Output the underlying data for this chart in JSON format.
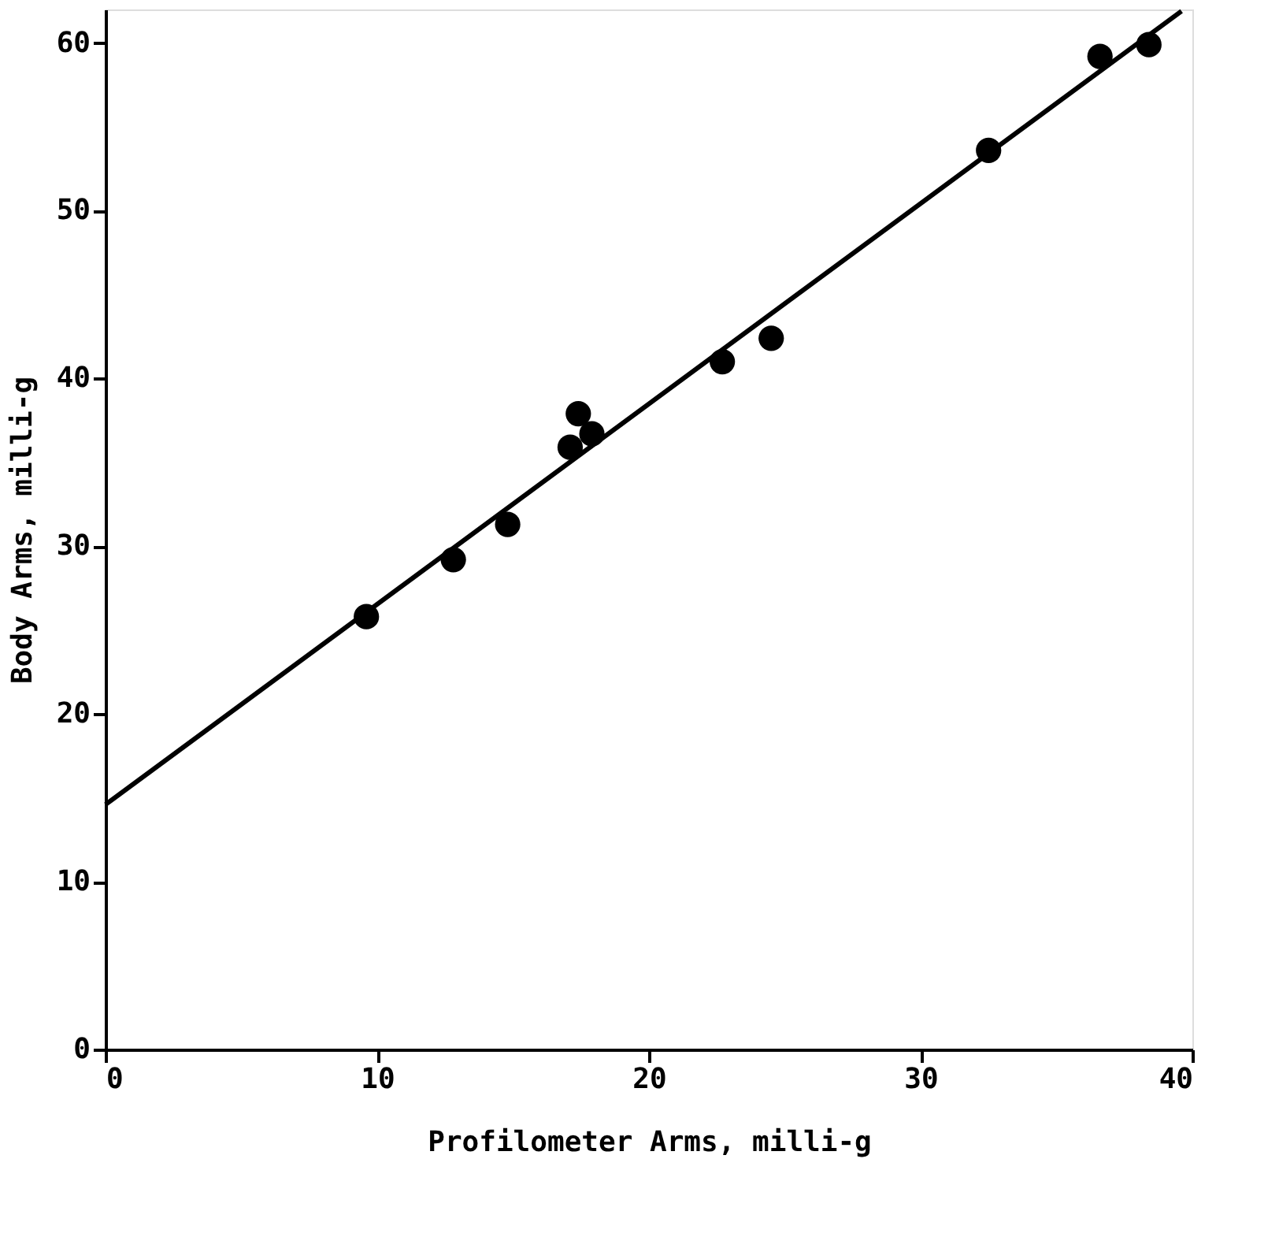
{
  "chart_data": {
    "type": "scatter",
    "xlabel": "Profilometer Arms, milli-g",
    "ylabel": "Body Arms, milli-g",
    "xlim": [
      0,
      40
    ],
    "ylim": [
      0,
      62
    ],
    "xticks": [
      0,
      10,
      20,
      30,
      40
    ],
    "yticks": [
      0,
      10,
      20,
      30,
      40,
      50,
      60
    ],
    "grid": false,
    "marker": "circle",
    "series": [
      {
        "color": "#000000",
        "x": [
          9.6,
          12.8,
          14.8,
          17.1,
          17.4,
          17.9,
          22.7,
          24.5,
          32.5,
          36.6,
          38.4
        ],
        "values": [
          25.8,
          29.2,
          31.3,
          35.9,
          37.9,
          36.7,
          41.0,
          42.4,
          53.6,
          59.2,
          59.9
        ]
      },
      {
        "type": "line",
        "color": "#000000",
        "line_style": "solid",
        "marker": "none",
        "x": [
          0,
          39.6
        ],
        "values": [
          14.6,
          61.9
        ]
      }
    ]
  }
}
